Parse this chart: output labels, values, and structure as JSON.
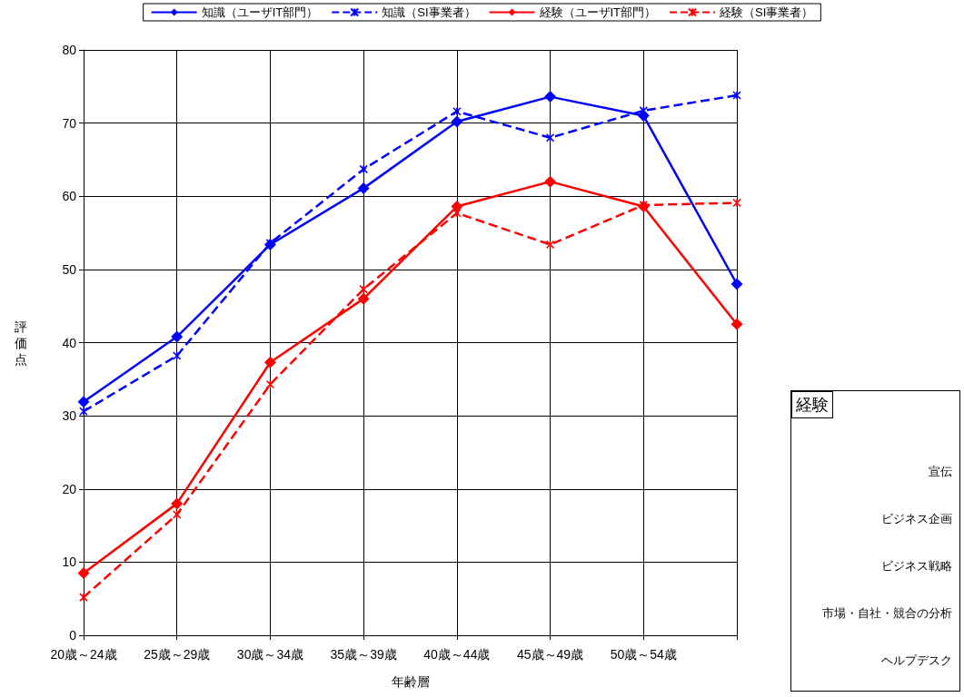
{
  "chart_data": [
    {
      "type": "line",
      "xlabel": "年齢層",
      "ylabel": "評価点",
      "categories": [
        "20歳～24歳",
        "25歳～29歳",
        "30歳～34歳",
        "35歳～39歳",
        "40歳～44歳",
        "45歳～49歳",
        "50歳～54歳",
        null
      ],
      "series": [
        {
          "name": "知識（ユーザIT部門）",
          "color": "#0000ff",
          "marker": "diamond",
          "line_style": "solid",
          "values": [
            31.9,
            40.8,
            53.4,
            61.1,
            70.2,
            73.6,
            71.0,
            48.0
          ]
        },
        {
          "name": "知識（SI事業者）",
          "color": "#0000ff",
          "marker": "cross",
          "line_style": "dashed",
          "values": [
            30.6,
            38.2,
            53.6,
            63.7,
            71.6,
            68.0,
            71.7,
            73.8
          ]
        },
        {
          "name": "経験（ユーザIT部門）",
          "color": "#ff0000",
          "marker": "diamond",
          "line_style": "solid",
          "values": [
            8.5,
            18.0,
            37.3,
            46.0,
            58.6,
            62.0,
            58.6,
            42.5
          ]
        },
        {
          "name": "経験（SI事業者）",
          "color": "#ff0000",
          "marker": "cross",
          "line_style": "dashed",
          "values": [
            5.2,
            16.5,
            34.3,
            47.3,
            57.7,
            53.4,
            58.8,
            59.1
          ]
        }
      ],
      "ylim": [
        0,
        80
      ],
      "yticks": [
        0,
        10,
        20,
        30,
        40,
        50,
        60,
        70,
        80
      ],
      "grid": true,
      "legend": "top"
    },
    {
      "type": "other",
      "title": "経験",
      "annotations": [
        "宣伝",
        "ビジネス企画",
        "ビジネス戦略",
        "市場・自社・競合の分析",
        "ヘルプデスク"
      ]
    }
  ]
}
